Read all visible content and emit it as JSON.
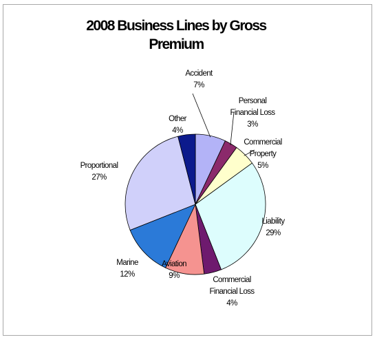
{
  "chart_data": {
    "type": "pie",
    "title": "2008 Business Lines by Gross Premium",
    "slices": [
      {
        "lines": [
          "Accident"
        ],
        "label": "Accident",
        "pct": "7%",
        "value": 7,
        "color": "#b3b3f7"
      },
      {
        "lines": [
          "Personal",
          "Financial Loss"
        ],
        "label": "Personal Financial Loss",
        "pct": "3%",
        "value": 3,
        "color": "#8b2a6b"
      },
      {
        "lines": [
          "Commercial",
          "Property"
        ],
        "label": "Commercial Property",
        "pct": "5%",
        "value": 5,
        "color": "#ffffcc"
      },
      {
        "lines": [
          "Liability"
        ],
        "label": "Liability",
        "pct": "29%",
        "value": 29,
        "color": "#ddfdfd"
      },
      {
        "lines": [
          "Commercial",
          "Financial Loss"
        ],
        "label": "Commercial Financial Loss",
        "pct": "4%",
        "value": 4,
        "color": "#6e1a6e"
      },
      {
        "lines": [
          "Aviation"
        ],
        "label": "Aviation",
        "pct": "9%",
        "value": 9,
        "color": "#f59390"
      },
      {
        "lines": [
          "Marine"
        ],
        "label": "Marine",
        "pct": "12%",
        "value": 12,
        "color": "#2b7ad8"
      },
      {
        "lines": [
          "Proportional"
        ],
        "label": "Proportional",
        "pct": "27%",
        "value": 27,
        "color": "#d0d0fa"
      },
      {
        "lines": [
          "Other"
        ],
        "label": "Other",
        "pct": "4%",
        "value": 4,
        "color": "#0c1a8c"
      }
    ]
  }
}
